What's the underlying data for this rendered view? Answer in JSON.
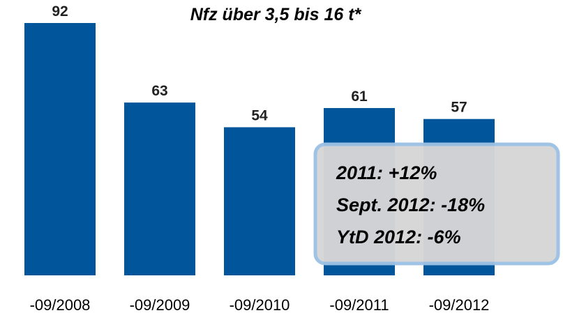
{
  "chart_data": {
    "type": "bar",
    "title": "Nfz über 3,5 bis 16 t*",
    "categories": [
      "-09/2008",
      "-09/2009",
      "-09/2010",
      "-09/2011",
      "-09/2012"
    ],
    "values": [
      92,
      63,
      54,
      61,
      57
    ],
    "color": "#00559b",
    "annotations": [
      "2011: +12%",
      "Sept. 2012: -18%",
      "YtD 2012: -6%"
    ]
  }
}
